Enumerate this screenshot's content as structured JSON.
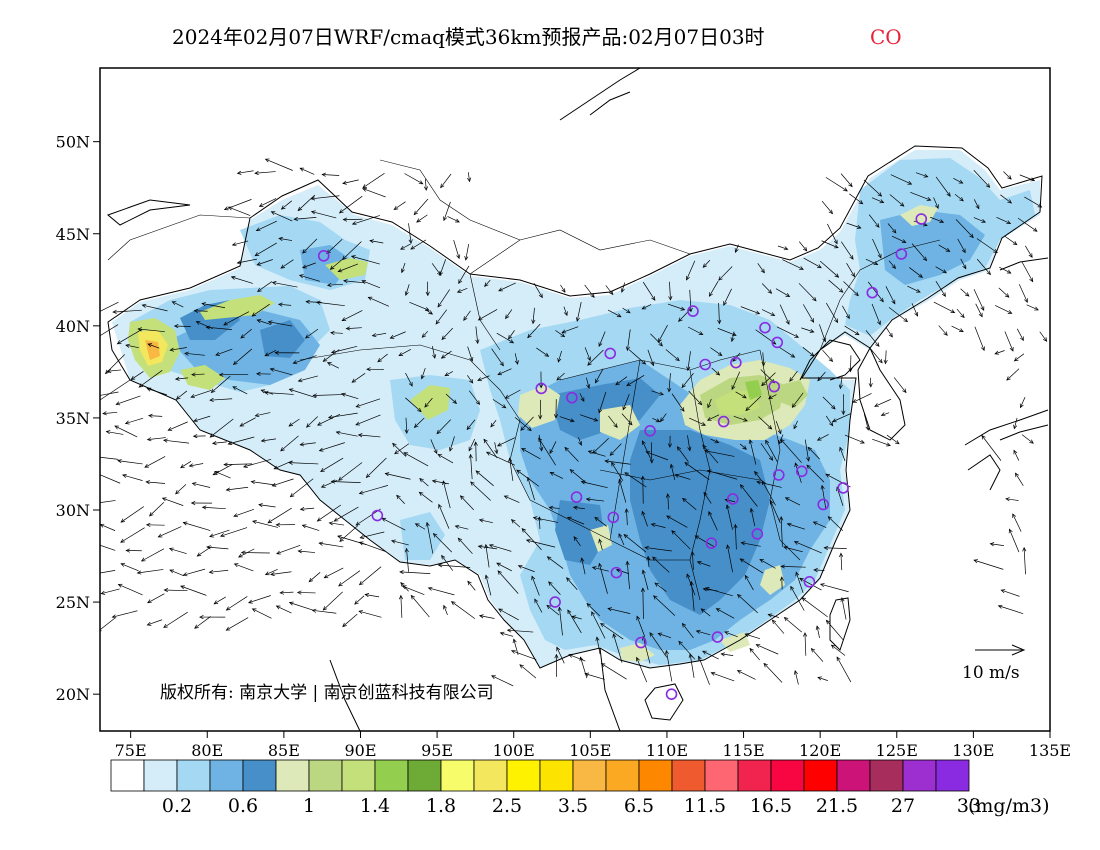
{
  "title_main": "2024年02月07日WRF/cmaq模式36km预报产品:02月07日03时",
  "title_species": "CO",
  "copyright": "版权所有: 南京大学 | 南京创蓝科技有限公司",
  "vector_scale_label": "10 m/s",
  "colorbar_unit": "(mg/m3)",
  "colorbar_labels": [
    {
      "text": "0.2",
      "index": 2
    },
    {
      "text": "0.6",
      "index": 4
    },
    {
      "text": "1",
      "index": 6
    },
    {
      "text": "1.4",
      "index": 8
    },
    {
      "text": "1.8",
      "index": 10
    },
    {
      "text": "2.5",
      "index": 12
    },
    {
      "text": "3.5",
      "index": 14
    },
    {
      "text": "6.5",
      "index": 16
    },
    {
      "text": "11.5",
      "index": 18
    },
    {
      "text": "16.5",
      "index": 20
    },
    {
      "text": "21.5",
      "index": 22
    },
    {
      "text": "27",
      "index": 24
    },
    {
      "text": "33",
      "index": 26
    }
  ],
  "colorbar_colors": [
    "#ffffff",
    "#d4edf9",
    "#a4d8f3",
    "#6eb3e3",
    "#468fc8",
    "#dde9b8",
    "#bcd781",
    "#c4e07a",
    "#93ce4f",
    "#6eab36",
    "#f6fc6a",
    "#f2e75d",
    "#fff200",
    "#fde300",
    "#f9b844",
    "#fba823",
    "#fd8800",
    "#ef5a2f",
    "#fe6771",
    "#f0244e",
    "#f70641",
    "#fe0000",
    "#cb1378",
    "#a72d5c",
    "#9d2fd0",
    "#8a2be2"
  ],
  "axis": {
    "x_ticks": [
      "75E",
      "80E",
      "85E",
      "90E",
      "95E",
      "100E",
      "105E",
      "110E",
      "115E",
      "120E",
      "125E",
      "130E",
      "135E"
    ],
    "y_ticks": [
      "20N",
      "25N",
      "30N",
      "35N",
      "40N",
      "45N",
      "50N"
    ],
    "xlim": [
      73,
      135
    ],
    "ylim": [
      18,
      54
    ]
  },
  "stations_lonlat": [
    [
      87.6,
      43.8
    ],
    [
      91.1,
      29.7
    ],
    [
      101.8,
      36.6
    ],
    [
      103.8,
      36.1
    ],
    [
      106.3,
      38.5
    ],
    [
      111.7,
      40.8
    ],
    [
      116.4,
      39.9
    ],
    [
      117.2,
      39.1
    ],
    [
      114.5,
      38.0
    ],
    [
      112.5,
      37.9
    ],
    [
      117.0,
      36.7
    ],
    [
      113.7,
      34.8
    ],
    [
      108.9,
      34.3
    ],
    [
      104.1,
      30.7
    ],
    [
      106.5,
      29.6
    ],
    [
      106.7,
      26.6
    ],
    [
      102.7,
      25.0
    ],
    [
      108.3,
      22.8
    ],
    [
      113.3,
      23.1
    ],
    [
      110.3,
      20.0
    ],
    [
      112.9,
      28.2
    ],
    [
      115.9,
      28.7
    ],
    [
      114.3,
      30.6
    ],
    [
      117.3,
      31.9
    ],
    [
      118.8,
      32.1
    ],
    [
      120.2,
      30.3
    ],
    [
      121.5,
      31.2
    ],
    [
      119.3,
      26.1
    ],
    [
      123.4,
      41.8
    ],
    [
      125.3,
      43.9
    ],
    [
      126.6,
      45.8
    ]
  ]
}
